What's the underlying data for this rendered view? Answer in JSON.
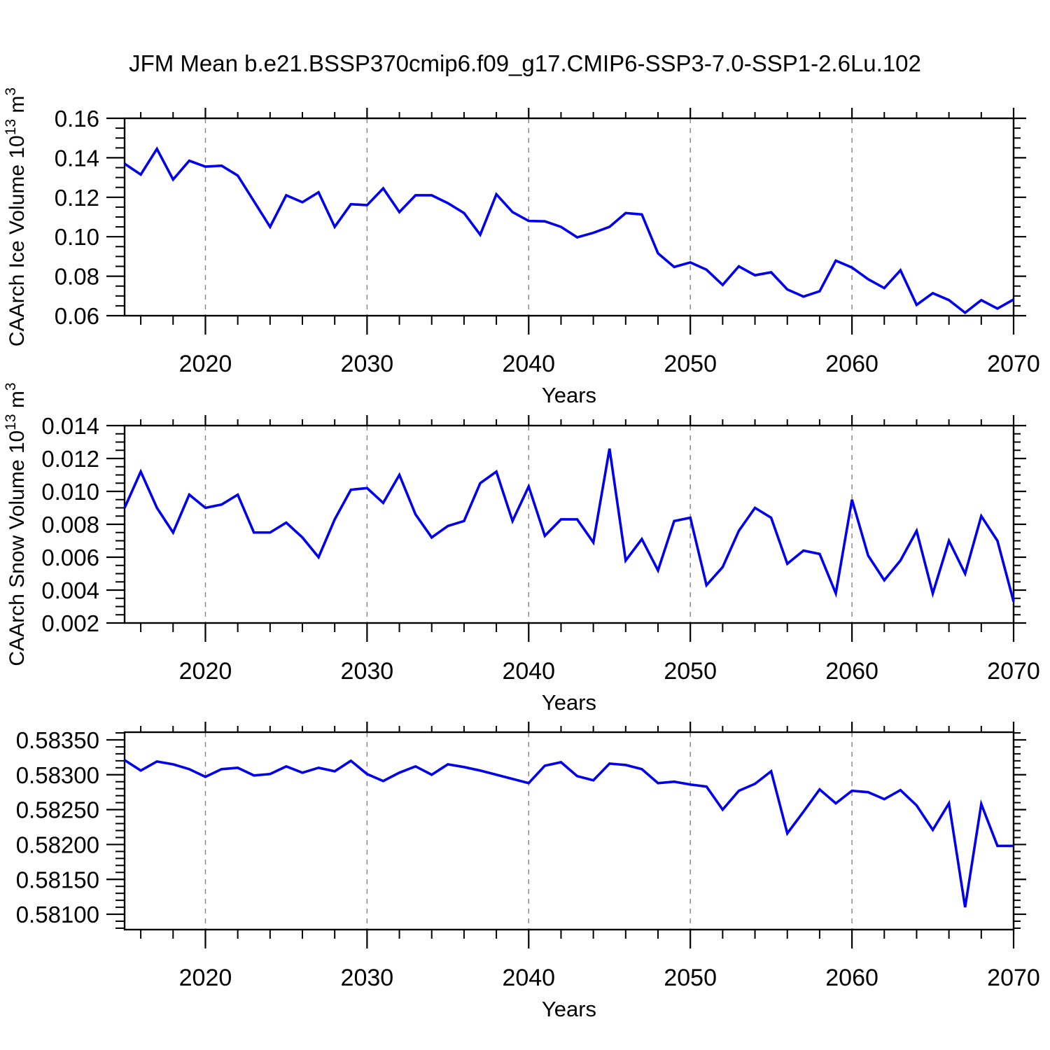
{
  "title": "JFM Mean b.e21.BSSP370cmip6.f09_g17.CMIP6-SSP3-7.0-SSP1-2.6Lu.102",
  "colors": {
    "line": "#0000EE",
    "axis": "#000000",
    "grid": "#848484",
    "text": "#000000",
    "background": "#FFFFFF"
  },
  "xlabel": "Years",
  "chart_data": [
    {
      "type": "line",
      "name": "ice-volume",
      "ylabel": "CAArch Ice Volume 10^13 m^3",
      "ylabel_parts": [
        {
          "text": "CAArch Ice Volume 10",
          "sup": false
        },
        {
          "text": "13",
          "sup": true
        },
        {
          "text": " m",
          "sup": false
        },
        {
          "text": "3",
          "sup": true
        }
      ],
      "xlabel": "Years",
      "xlim": [
        2015,
        2070
      ],
      "ylim": [
        0.06,
        0.16
      ],
      "yticks": [
        0.16,
        0.14,
        0.12,
        0.1,
        0.08,
        0.06
      ],
      "ytick_labels": [
        "0.16",
        "0.14",
        "0.12",
        "0.10",
        "0.08",
        "0.06"
      ],
      "yminor_step": 0.005,
      "xticks": [
        2020,
        2030,
        2040,
        2050,
        2060,
        2070
      ],
      "xtick_labels": [
        "2020",
        "2030",
        "2040",
        "2050",
        "2060",
        "2070"
      ],
      "xminor_step": 2,
      "xgrid": [
        2020,
        2030,
        2040,
        2050,
        2060
      ],
      "grid_on": true,
      "legend": "none",
      "x": [
        2015,
        2016,
        2017,
        2018,
        2019,
        2020,
        2021,
        2022,
        2023,
        2024,
        2025,
        2026,
        2027,
        2028,
        2029,
        2030,
        2031,
        2032,
        2033,
        2034,
        2035,
        2036,
        2037,
        2038,
        2039,
        2040,
        2041,
        2042,
        2043,
        2044,
        2045,
        2046,
        2047,
        2048,
        2049,
        2050,
        2051,
        2052,
        2053,
        2054,
        2055,
        2056,
        2057,
        2058,
        2059,
        2060,
        2061,
        2062,
        2063,
        2064,
        2065,
        2066,
        2067,
        2068,
        2069,
        2070
      ],
      "values": [
        0.137,
        0.1315,
        0.1445,
        0.129,
        0.1385,
        0.1355,
        0.136,
        0.131,
        0.118,
        0.105,
        0.121,
        0.1175,
        0.1225,
        0.105,
        0.1165,
        0.116,
        0.1245,
        0.1125,
        0.121,
        0.121,
        0.117,
        0.112,
        0.101,
        0.1215,
        0.1125,
        0.108,
        0.1078,
        0.105,
        0.0997,
        0.102,
        0.105,
        0.112,
        0.1113,
        0.0916,
        0.0847,
        0.087,
        0.0833,
        0.0756,
        0.085,
        0.0805,
        0.082,
        0.0733,
        0.0697,
        0.0724,
        0.0879,
        0.0844,
        0.0785,
        0.074,
        0.083,
        0.0655,
        0.0714,
        0.0679,
        0.0615,
        0.0679,
        0.0636,
        0.0682
      ]
    },
    {
      "type": "line",
      "name": "snow-volume",
      "ylabel": "CAArch Snow Volume 10^13 m^3",
      "ylabel_parts": [
        {
          "text": "CAArch Snow Volume 10",
          "sup": false
        },
        {
          "text": "13",
          "sup": true
        },
        {
          "text": " m",
          "sup": false
        },
        {
          "text": "3",
          "sup": true
        }
      ],
      "xlabel": "Years",
      "xlim": [
        2015,
        2070
      ],
      "ylim": [
        0.002,
        0.014
      ],
      "yticks": [
        0.014,
        0.012,
        0.01,
        0.008,
        0.006,
        0.004,
        0.002
      ],
      "ytick_labels": [
        "0.014",
        "0.012",
        "0.010",
        "0.008",
        "0.006",
        "0.004",
        "0.002"
      ],
      "yminor_step": 0.0005,
      "xticks": [
        2020,
        2030,
        2040,
        2050,
        2060,
        2070
      ],
      "xtick_labels": [
        "2020",
        "2030",
        "2040",
        "2050",
        "2060",
        "2070"
      ],
      "xminor_step": 2,
      "xgrid": [
        2020,
        2030,
        2040,
        2050,
        2060
      ],
      "grid_on": true,
      "legend": "none",
      "x": [
        2015,
        2016,
        2017,
        2018,
        2019,
        2020,
        2021,
        2022,
        2023,
        2024,
        2025,
        2026,
        2027,
        2028,
        2029,
        2030,
        2031,
        2032,
        2033,
        2034,
        2035,
        2036,
        2037,
        2038,
        2039,
        2040,
        2041,
        2042,
        2043,
        2044,
        2045,
        2046,
        2047,
        2048,
        2049,
        2050,
        2051,
        2052,
        2053,
        2054,
        2055,
        2056,
        2057,
        2058,
        2059,
        2060,
        2061,
        2062,
        2063,
        2064,
        2065,
        2066,
        2067,
        2068,
        2069,
        2070
      ],
      "values": [
        0.009,
        0.0112,
        0.009,
        0.0075,
        0.0098,
        0.009,
        0.0092,
        0.0098,
        0.0075,
        0.0075,
        0.0081,
        0.0072,
        0.006,
        0.0083,
        0.0101,
        0.0102,
        0.0093,
        0.011,
        0.0086,
        0.0072,
        0.0079,
        0.0082,
        0.0105,
        0.0112,
        0.0082,
        0.0103,
        0.0073,
        0.0083,
        0.0083,
        0.0069,
        0.0126,
        0.0058,
        0.0071,
        0.0052,
        0.0082,
        0.0084,
        0.0043,
        0.0054,
        0.0076,
        0.009,
        0.0084,
        0.0056,
        0.0064,
        0.0062,
        0.0038,
        0.0095,
        0.0061,
        0.0046,
        0.0058,
        0.0076,
        0.0038,
        0.007,
        0.005,
        0.0085,
        0.007,
        0.0033
      ]
    },
    {
      "type": "line",
      "name": "bottom-series",
      "ylabel": "",
      "ylabel_parts": [],
      "xlabel": "Years",
      "xlim": [
        2015,
        2070
      ],
      "ylim": [
        0.58078,
        0.58361
      ],
      "yticks": [
        0.5835,
        0.583,
        0.5825,
        0.582,
        0.5815,
        0.581
      ],
      "ytick_labels": [
        "0.58350",
        "0.58300",
        "0.58250",
        "0.58200",
        "0.58150",
        "0.58100"
      ],
      "yminor_step": 0.0001,
      "xticks": [
        2020,
        2030,
        2040,
        2050,
        2060,
        2070
      ],
      "xtick_labels": [
        "2020",
        "2030",
        "2040",
        "2050",
        "2060",
        "2070"
      ],
      "xminor_step": 2,
      "xgrid": [
        2020,
        2030,
        2040,
        2050,
        2060
      ],
      "grid_on": true,
      "legend": "none",
      "x": [
        2015,
        2016,
        2017,
        2018,
        2019,
        2020,
        2021,
        2022,
        2023,
        2024,
        2025,
        2026,
        2027,
        2028,
        2029,
        2030,
        2031,
        2032,
        2033,
        2034,
        2035,
        2036,
        2037,
        2038,
        2039,
        2040,
        2041,
        2042,
        2043,
        2044,
        2045,
        2046,
        2047,
        2048,
        2049,
        2050,
        2051,
        2052,
        2053,
        2054,
        2055,
        2056,
        2057,
        2058,
        2059,
        2060,
        2061,
        2062,
        2063,
        2064,
        2065,
        2066,
        2067,
        2068,
        2069,
        2070
      ],
      "values": [
        0.58321,
        0.58306,
        0.58319,
        0.58315,
        0.58308,
        0.58297,
        0.58308,
        0.5831,
        0.58299,
        0.58301,
        0.58312,
        0.58303,
        0.5831,
        0.58305,
        0.5832,
        0.58301,
        0.58291,
        0.58303,
        0.58312,
        0.583,
        0.58315,
        0.58311,
        0.58306,
        0.583,
        0.58294,
        0.58288,
        0.58313,
        0.58318,
        0.58298,
        0.58292,
        0.58316,
        0.58314,
        0.58308,
        0.58288,
        0.5829,
        0.58286,
        0.58283,
        0.5825,
        0.58277,
        0.58287,
        0.58305,
        0.58216,
        0.58247,
        0.58279,
        0.58259,
        0.58277,
        0.58275,
        0.58265,
        0.58278,
        0.58256,
        0.58221,
        0.58259,
        0.5811,
        0.58258,
        0.58198,
        0.58198
      ]
    }
  ]
}
